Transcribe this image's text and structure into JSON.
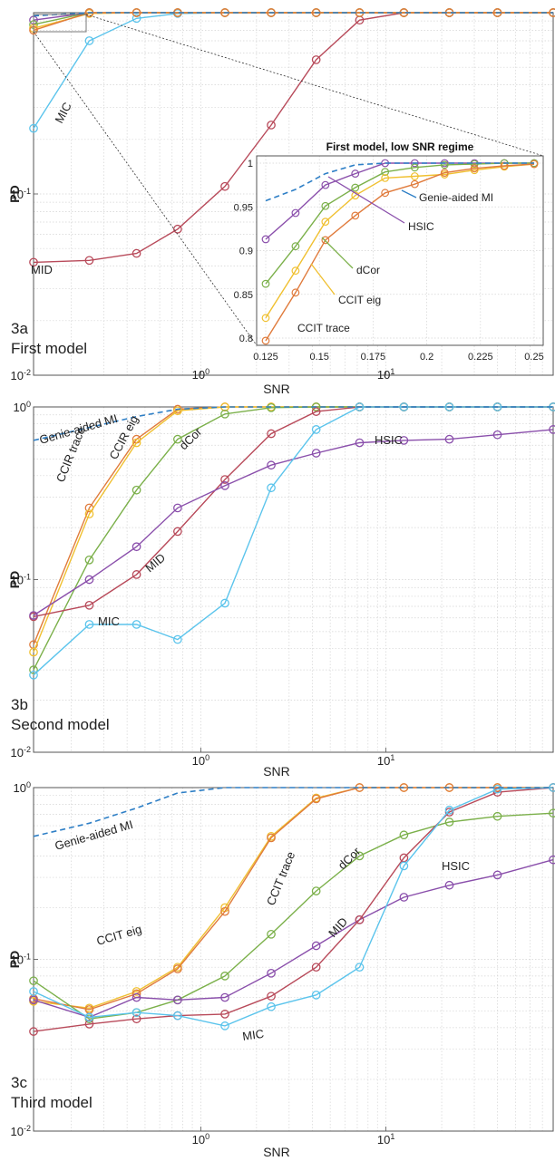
{
  "chart_data": [
    {
      "type": "line",
      "panel_label": "3a",
      "panel_title": "First model",
      "ylabel": "PD",
      "xlabel": "SNR",
      "xscale": "log",
      "yscale": "log",
      "xlim": [
        0.125,
        80
      ],
      "ylim": [
        0.01,
        1
      ],
      "x_tick_labels": [
        "10^0",
        "10^1"
      ],
      "y_tick_labels": [
        "10^-2",
        "10^-1"
      ],
      "grid": true,
      "x": [
        0.125,
        0.25,
        0.45,
        0.75,
        1.35,
        2.4,
        4.2,
        7.2,
        12.5,
        22,
        40,
        80
      ],
      "series": [
        {
          "name": "MIC",
          "color": "#5bc4ec",
          "marker": "circle",
          "values": [
            0.23,
            0.7,
            0.93,
            0.99,
            1.0,
            1.0,
            1.0,
            1.0,
            1.0,
            1.0,
            1.0,
            1.0
          ]
        },
        {
          "name": "MID",
          "color": "#b84a5a",
          "marker": "circle",
          "values": [
            0.042,
            0.043,
            0.047,
            0.064,
            0.11,
            0.24,
            0.55,
            0.91,
            1.0,
            1.0,
            1.0,
            1.0
          ]
        },
        {
          "name": "HSIC",
          "color": "#8a4fab",
          "marker": "circle",
          "values": [
            0.91,
            1.0,
            1.0,
            1.0,
            1.0,
            1.0,
            1.0,
            1.0,
            1.0,
            1.0,
            1.0,
            1.0
          ]
        },
        {
          "name": "dCor",
          "color": "#7bb04a",
          "marker": "circle",
          "values": [
            0.86,
            1.0,
            1.0,
            1.0,
            1.0,
            1.0,
            1.0,
            1.0,
            1.0,
            1.0,
            1.0,
            1.0
          ]
        },
        {
          "name": "CCIT eig",
          "color": "#f0c030",
          "marker": "circle",
          "values": [
            0.82,
            0.99,
            1.0,
            1.0,
            1.0,
            1.0,
            1.0,
            1.0,
            1.0,
            1.0,
            1.0,
            1.0
          ]
        },
        {
          "name": "CCIT trace",
          "color": "#e07b3c",
          "marker": "circle",
          "values": [
            0.8,
            1.0,
            1.0,
            1.0,
            1.0,
            1.0,
            1.0,
            1.0,
            1.0,
            1.0,
            1.0,
            1.0
          ]
        },
        {
          "name": "Genie-aided MI",
          "color": "#2e7fc6",
          "dashed": true,
          "marker": "none",
          "values": [
            0.96,
            1.0,
            1.0,
            1.0,
            1.0,
            1.0,
            1.0,
            1.0,
            1.0,
            1.0,
            1.0,
            1.0
          ]
        }
      ],
      "labels": [
        "MIC",
        "MID"
      ],
      "inset": {
        "title": "First model, low SNR regime",
        "xlim": [
          0.125,
          0.25
        ],
        "ylim": [
          0.8,
          1
        ],
        "x_tick_labels": [
          "0.125",
          "0.15",
          "0.175",
          "0.2",
          "0.225",
          "0.25"
        ],
        "y_tick_labels": [
          "0.8",
          "0.85",
          "0.9",
          "0.95",
          "1"
        ],
        "x": [
          0.125,
          0.1389,
          0.1528,
          0.1667,
          0.1806,
          0.1944,
          0.2083,
          0.2222,
          0.2361,
          0.25
        ],
        "series": [
          {
            "name": "HSIC",
            "color": "#8a4fab",
            "values": [
              0.913,
              0.943,
              0.975,
              0.988,
              1.0,
              1.0,
              1.0,
              1.0,
              1.0,
              1.0
            ]
          },
          {
            "name": "dCor",
            "color": "#7bb04a",
            "values": [
              0.862,
              0.905,
              0.951,
              0.972,
              0.99,
              0.995,
              0.998,
              0.999,
              1.0,
              1.0
            ]
          },
          {
            "name": "CCIT eig",
            "color": "#f0c030",
            "values": [
              0.823,
              0.877,
              0.933,
              0.963,
              0.983,
              0.985,
              0.987,
              0.992,
              0.996,
              0.999
            ]
          },
          {
            "name": "CCIT trace",
            "color": "#e07b3c",
            "values": [
              0.797,
              0.852,
              0.912,
              0.94,
              0.966,
              0.976,
              0.989,
              0.994,
              0.997,
              0.999
            ]
          },
          {
            "name": "Genie-aided MI",
            "color": "#2e7fc6",
            "dashed": true,
            "values": [
              0.957,
              0.97,
              0.988,
              0.998,
              1.0,
              1.0,
              1.0,
              1.0,
              1.0,
              1.0
            ]
          }
        ],
        "labels": [
          "Genie-aided MI",
          "HSIC",
          "dCor",
          "CCIT eig",
          "CCIT trace"
        ]
      }
    },
    {
      "type": "line",
      "panel_label": "3b",
      "panel_title": "Second model",
      "ylabel": "PD",
      "xlabel": "SNR",
      "xscale": "log",
      "yscale": "log",
      "xlim": [
        0.125,
        80
      ],
      "ylim": [
        0.01,
        1
      ],
      "x_tick_labels": [
        "10^0",
        "10^1"
      ],
      "y_tick_labels": [
        "10^-2",
        "10^-1",
        "10^0"
      ],
      "grid": true,
      "x": [
        0.125,
        0.25,
        0.45,
        0.75,
        1.35,
        2.4,
        4.2,
        7.2,
        12.5,
        22,
        40,
        80
      ],
      "series": [
        {
          "name": "CCIR trace",
          "color": "#e07b3c",
          "marker": "circle",
          "values": [
            0.042,
            0.26,
            0.65,
            0.97,
            1.0,
            1.0,
            1.0,
            1.0,
            1.0,
            1.0,
            1.0,
            1.0
          ]
        },
        {
          "name": "CCIR eig",
          "color": "#f0c030",
          "marker": "circle",
          "values": [
            0.038,
            0.24,
            0.62,
            0.95,
            1.0,
            1.0,
            1.0,
            1.0,
            1.0,
            1.0,
            1.0,
            1.0
          ]
        },
        {
          "name": "dCor",
          "color": "#7bb04a",
          "marker": "circle",
          "values": [
            0.03,
            0.13,
            0.33,
            0.65,
            0.91,
            0.99,
            1.0,
            1.0,
            1.0,
            1.0,
            1.0,
            1.0
          ]
        },
        {
          "name": "MID",
          "color": "#b84a5a",
          "marker": "circle",
          "values": [
            0.061,
            0.071,
            0.107,
            0.19,
            0.38,
            0.7,
            0.94,
            1.0,
            1.0,
            1.0,
            1.0,
            1.0
          ]
        },
        {
          "name": "HSIC",
          "color": "#8a4fab",
          "marker": "circle",
          "values": [
            0.062,
            0.1,
            0.155,
            0.26,
            0.35,
            0.46,
            0.54,
            0.62,
            0.64,
            0.65,
            0.69,
            0.74
          ]
        },
        {
          "name": "MIC",
          "color": "#5bc4ec",
          "marker": "circle",
          "values": [
            0.028,
            0.055,
            0.055,
            0.045,
            0.073,
            0.34,
            0.74,
            1.0,
            1.0,
            1.0,
            1.0,
            1.0
          ]
        },
        {
          "name": "Genie-aided MI",
          "color": "#2e7fc6",
          "dashed": true,
          "marker": "none",
          "values": [
            0.64,
            0.76,
            0.88,
            0.97,
            1.0,
            1.0,
            1.0,
            1.0,
            1.0,
            1.0,
            1.0,
            1.0
          ]
        }
      ],
      "labels": [
        "Genie-aided MI",
        "CCIR trace",
        "CCIR eig",
        "dCor",
        "HSIC",
        "MID",
        "MIC"
      ]
    },
    {
      "type": "line",
      "panel_label": "3c",
      "panel_title": "Third model",
      "ylabel": "PD",
      "xlabel": "SNR",
      "xscale": "log",
      "yscale": "log",
      "xlim": [
        0.125,
        80
      ],
      "ylim": [
        0.01,
        1
      ],
      "x_tick_labels": [
        "10^0",
        "10^1"
      ],
      "y_tick_labels": [
        "10^-2",
        "10^-1",
        "10^0"
      ],
      "grid": true,
      "x": [
        0.125,
        0.25,
        0.45,
        0.75,
        1.35,
        2.4,
        4.2,
        7.2,
        12.5,
        22,
        40,
        80
      ],
      "series": [
        {
          "name": "CCIT eig",
          "color": "#f0c030",
          "marker": "circle",
          "values": [
            0.057,
            0.052,
            0.065,
            0.09,
            0.2,
            0.52,
            0.87,
            1.0,
            1.0,
            1.0,
            1.0,
            1.0
          ]
        },
        {
          "name": "CCIT trace",
          "color": "#e07b3c",
          "marker": "circle",
          "values": [
            0.059,
            0.051,
            0.063,
            0.088,
            0.19,
            0.51,
            0.86,
            1.0,
            1.0,
            1.0,
            1.0,
            1.0
          ]
        },
        {
          "name": "dCor",
          "color": "#7bb04a",
          "marker": "circle",
          "values": [
            0.075,
            0.045,
            0.049,
            0.058,
            0.08,
            0.14,
            0.25,
            0.4,
            0.53,
            0.63,
            0.68,
            0.71
          ]
        },
        {
          "name": "HSIC",
          "color": "#8a4fab",
          "marker": "circle",
          "values": [
            0.058,
            0.046,
            0.06,
            0.058,
            0.06,
            0.083,
            0.12,
            0.17,
            0.23,
            0.27,
            0.31,
            0.38
          ]
        },
        {
          "name": "MID",
          "color": "#b84a5a",
          "marker": "circle",
          "values": [
            0.038,
            0.042,
            0.045,
            0.047,
            0.048,
            0.061,
            0.09,
            0.17,
            0.39,
            0.72,
            0.94,
            1.0
          ]
        },
        {
          "name": "MIC",
          "color": "#5bc4ec",
          "marker": "circle",
          "values": [
            0.065,
            0.046,
            0.049,
            0.047,
            0.041,
            0.053,
            0.062,
            0.09,
            0.35,
            0.74,
            0.98,
            1.0
          ]
        },
        {
          "name": "Genie-aided MI",
          "color": "#2e7fc6",
          "dashed": true,
          "marker": "none",
          "values": [
            0.52,
            0.62,
            0.76,
            0.93,
            1.0,
            1.0,
            1.0,
            1.0,
            1.0,
            1.0,
            1.0,
            1.0
          ]
        }
      ],
      "labels": [
        "Genie-aided MI",
        "CCIT trace",
        "CCIT eig",
        "dCor",
        "HSIC",
        "MID",
        "MIC"
      ]
    }
  ]
}
